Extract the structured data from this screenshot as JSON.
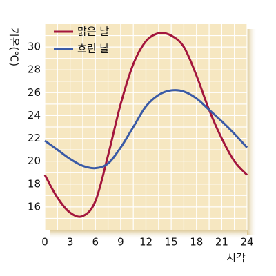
{
  "chart_data": {
    "type": "line",
    "x_label": "시각",
    "y_label": "기온(℃)",
    "x": [
      0,
      1.5,
      3,
      4.5,
      6,
      7.5,
      9,
      10.5,
      12,
      13.5,
      15,
      16.5,
      18,
      19.5,
      21,
      22.5,
      24
    ],
    "series": [
      {
        "name": "맑은 날",
        "color": "#a3163d",
        "values": [
          18.8,
          16.8,
          15.5,
          15.2,
          16.5,
          20.5,
          25,
          28.5,
          30.5,
          31.2,
          31,
          30,
          27.5,
          24.5,
          22,
          20,
          18.8
        ]
      },
      {
        "name": "흐린 날",
        "color": "#3a5aa6",
        "values": [
          21.8,
          21,
          20.2,
          19.6,
          19.4,
          19.8,
          21.2,
          23,
          24.8,
          25.8,
          26.2,
          26.1,
          25.5,
          24.5,
          23.5,
          22.4,
          21.2
        ]
      }
    ],
    "xlim": [
      0,
      24
    ],
    "xticks": [
      0,
      3,
      6,
      9,
      12,
      15,
      18,
      21,
      24
    ],
    "ylim": [
      14,
      32
    ],
    "yticks": [
      16,
      18,
      20,
      22,
      24,
      26,
      28,
      30
    ],
    "grid": true,
    "legend": "upper left"
  }
}
